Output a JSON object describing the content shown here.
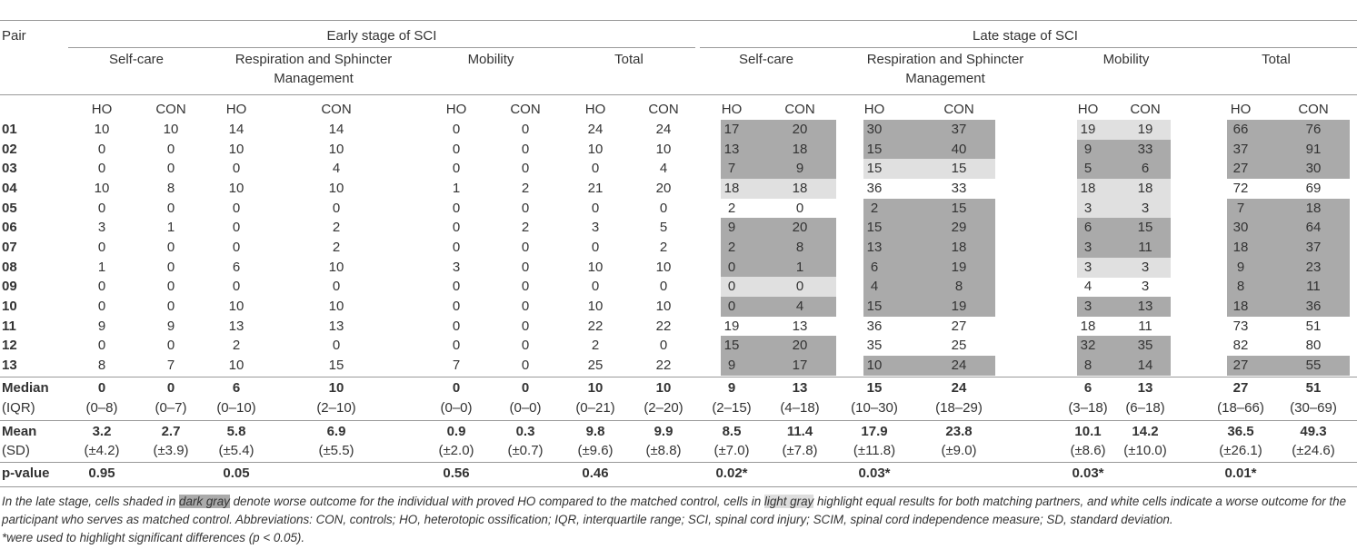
{
  "header": {
    "pair": "Pair",
    "early": "Early stage of SCI",
    "late": "Late stage of SCI",
    "groups": [
      "Self-care",
      "Respiration and Sphincter Management",
      "Mobility",
      "Total",
      "Self-care",
      "Respiration and Sphincter Management",
      "Mobility",
      "Total"
    ],
    "columns": [
      "HO",
      "CON",
      "HO",
      "CON",
      "HO",
      "CON",
      "HO",
      "CON",
      "HO",
      "CON",
      "HO",
      "CON",
      "HO",
      "CON",
      "HO",
      "CON"
    ]
  },
  "rows": [
    [
      "01",
      10,
      10,
      14,
      14,
      0,
      0,
      24,
      24,
      17,
      20,
      30,
      37,
      19,
      19,
      66,
      76
    ],
    [
      "02",
      0,
      0,
      10,
      10,
      0,
      0,
      10,
      10,
      13,
      18,
      15,
      40,
      9,
      33,
      37,
      91
    ],
    [
      "03",
      0,
      0,
      0,
      4,
      0,
      0,
      0,
      4,
      7,
      9,
      15,
      15,
      5,
      6,
      27,
      30
    ],
    [
      "04",
      10,
      8,
      10,
      10,
      1,
      2,
      21,
      20,
      18,
      18,
      36,
      33,
      18,
      18,
      72,
      69
    ],
    [
      "05",
      0,
      0,
      0,
      0,
      0,
      0,
      0,
      0,
      2,
      0,
      2,
      15,
      3,
      3,
      7,
      18
    ],
    [
      "06",
      3,
      1,
      0,
      2,
      0,
      2,
      3,
      5,
      9,
      20,
      15,
      29,
      6,
      15,
      30,
      64
    ],
    [
      "07",
      0,
      0,
      0,
      2,
      0,
      0,
      0,
      2,
      2,
      8,
      13,
      18,
      3,
      11,
      18,
      37
    ],
    [
      "08",
      1,
      0,
      6,
      10,
      3,
      0,
      10,
      10,
      0,
      1,
      6,
      19,
      3,
      3,
      9,
      23
    ],
    [
      "09",
      0,
      0,
      0,
      0,
      0,
      0,
      0,
      0,
      0,
      0,
      4,
      8,
      4,
      3,
      8,
      11
    ],
    [
      "10",
      0,
      0,
      10,
      10,
      0,
      0,
      10,
      10,
      0,
      4,
      15,
      19,
      3,
      13,
      18,
      36
    ],
    [
      "11",
      9,
      9,
      13,
      13,
      0,
      0,
      22,
      22,
      19,
      13,
      36,
      27,
      18,
      11,
      73,
      51
    ],
    [
      "12",
      0,
      0,
      2,
      0,
      0,
      0,
      2,
      0,
      15,
      20,
      35,
      25,
      32,
      35,
      82,
      80
    ],
    [
      "13",
      8,
      7,
      10,
      15,
      7,
      0,
      25,
      22,
      9,
      17,
      10,
      24,
      8,
      14,
      27,
      55
    ]
  ],
  "median": {
    "label": "Median",
    "values": [
      0,
      0,
      6,
      10,
      0,
      0,
      10,
      10,
      9,
      13,
      15,
      24,
      6,
      13,
      27,
      51
    ]
  },
  "iqr": {
    "label": "(IQR)",
    "values": [
      "(0–8)",
      "(0–7)",
      "(0–10)",
      "(2–10)",
      "(0–0)",
      "(0–0)",
      "(0–21)",
      "(2–20)",
      "(2–15)",
      "(4–18)",
      "(10–30)",
      "(18–29)",
      "(3–18)",
      "(6–18)",
      "(18–66)",
      "(30–69)"
    ]
  },
  "mean": {
    "label": "Mean",
    "values": [
      3.2,
      2.7,
      5.8,
      6.9,
      0.9,
      0.3,
      9.8,
      9.9,
      8.5,
      11.4,
      17.9,
      23.8,
      10.1,
      14.2,
      36.5,
      49.3
    ]
  },
  "sd": {
    "label": "(SD)",
    "values": [
      "(±4.2)",
      "(±3.9)",
      "(±5.4)",
      "(±5.5)",
      "(±2.0)",
      "(±0.7)",
      "(±9.6)",
      "(±8.8)",
      "(±7.0)",
      "(±7.8)",
      "(±11.8)",
      "(±9.0)",
      "(±8.6)",
      "(±10.0)",
      "(±26.1)",
      "(±24.6)"
    ]
  },
  "pvalue": {
    "label": "p-value",
    "values": [
      "0.95",
      "0.05",
      "0.56",
      "0.46",
      "0.02*",
      "0.03*",
      "0.03*",
      "0.01*"
    ]
  },
  "footnote": [
    "In the late stage, cells shaded in ",
    "dark gray",
    " denote worse outcome for the individual with proved HO compared to the matched control, cells in ",
    "light gray",
    " highlight equal results for both matching partners, and white cells indicate a worse outcome for the participant who serves as matched control. Abbreviations: CON, controls; HO, heterotopic ossification; IQR, interquartile range; SCI, spinal cord injury; SCIM, spinal cord independence measure; SD, standard deviation.",
    "*were used to highlight significant differences (p < 0.05)."
  ]
}
